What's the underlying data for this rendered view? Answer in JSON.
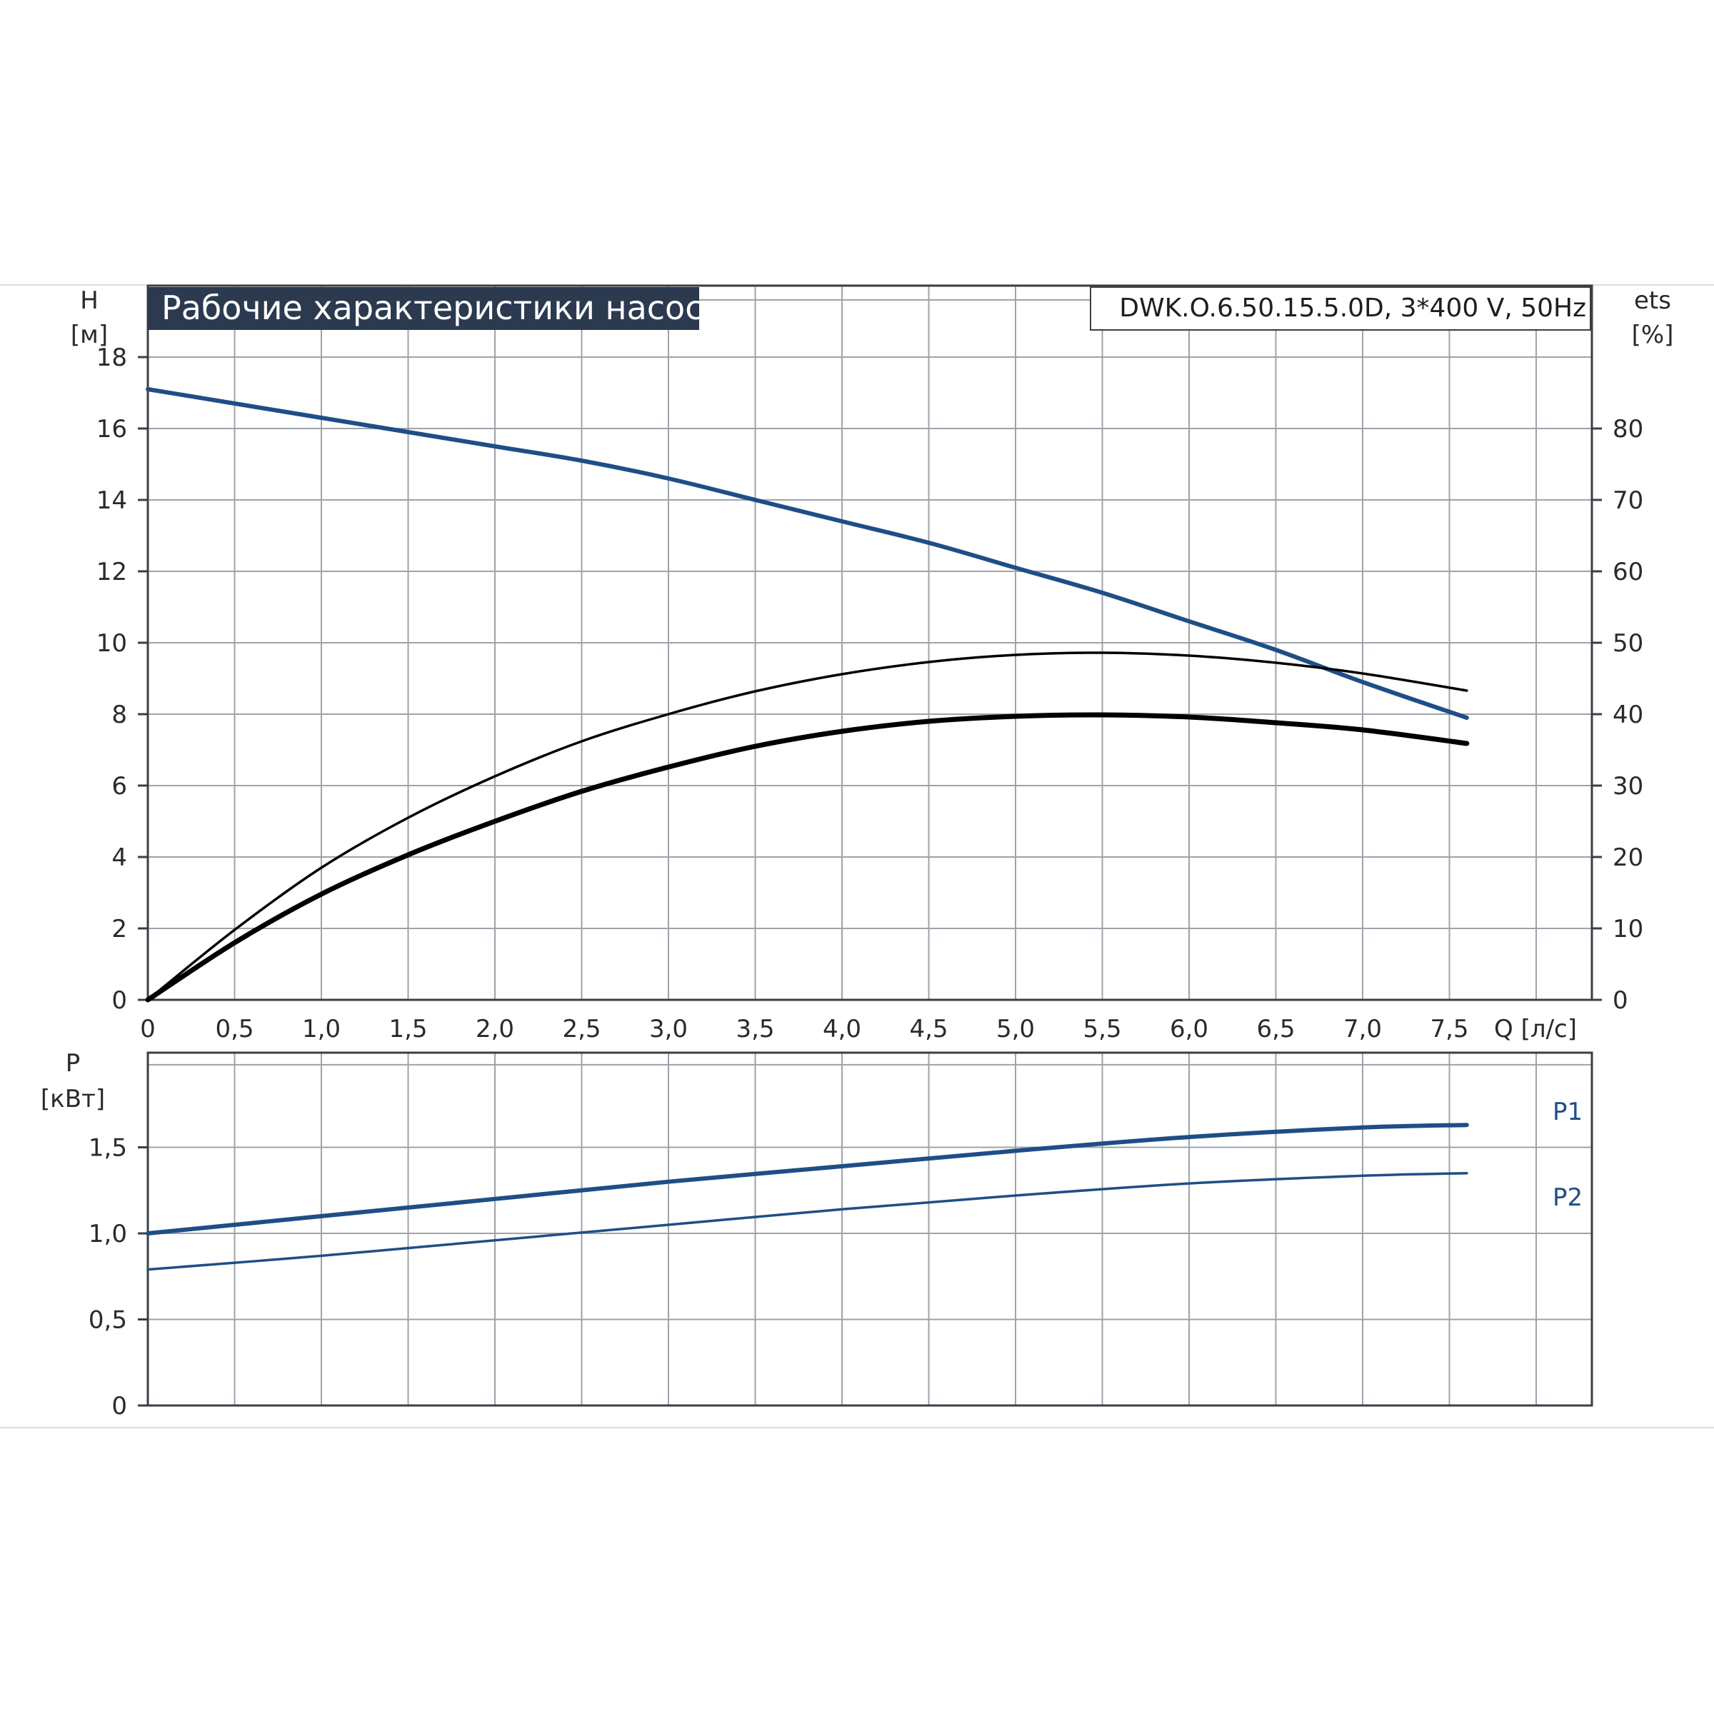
{
  "chart_data": [
    {
      "type": "line",
      "title": "Рабочие характеристики насоса",
      "subtitle": "DWK.O.6.50.15.5.0D, 3*400 V, 50Hz",
      "xlabel": "Q [л/с]",
      "xlim": [
        0,
        8.25
      ],
      "xticks": [
        "0",
        "0,5",
        "1,0",
        "1,5",
        "2,0",
        "2,5",
        "3,0",
        "3,5",
        "4,0",
        "4,5",
        "5,0",
        "5,5",
        "6,0",
        "6,5",
        "7,0",
        "7,5"
      ],
      "ylabel_left": "H",
      "ylabel_left_unit": "[м]",
      "ylim_left": [
        0,
        20
      ],
      "yticks_left": [
        "0",
        "2",
        "4",
        "6",
        "8",
        "10",
        "12",
        "14",
        "16",
        "18"
      ],
      "ylabel_right": "ets",
      "ylabel_right_unit": "[%]",
      "ylim_right": [
        0,
        100
      ],
      "yticks_right": [
        "0",
        "10",
        "20",
        "30",
        "40",
        "50",
        "60",
        "70",
        "80"
      ],
      "grid": true,
      "series": [
        {
          "axis": "left",
          "color": "#1f4e86",
          "points": [
            [
              0,
              17.1
            ],
            [
              0.5,
              16.7
            ],
            [
              1.0,
              16.3
            ],
            [
              1.5,
              15.9
            ],
            [
              2.0,
              15.5
            ],
            [
              2.5,
              15.1
            ],
            [
              3.0,
              14.6
            ],
            [
              3.5,
              14.0
            ],
            [
              4.0,
              13.4
            ],
            [
              4.5,
              12.8
            ],
            [
              5.0,
              12.1
            ],
            [
              5.5,
              11.4
            ],
            [
              6.0,
              10.6
            ],
            [
              6.5,
              9.8
            ],
            [
              7.0,
              8.9
            ],
            [
              7.6,
              7.9
            ]
          ]
        },
        {
          "axis": "right",
          "color": "#000000",
          "points": [
            [
              0,
              0
            ],
            [
              0.5,
              9.8
            ],
            [
              1.0,
              18.5
            ],
            [
              1.5,
              25.5
            ],
            [
              2.0,
              31.3
            ],
            [
              2.5,
              36.2
            ],
            [
              3.0,
              40.0
            ],
            [
              3.5,
              43.2
            ],
            [
              4.0,
              45.6
            ],
            [
              4.5,
              47.3
            ],
            [
              5.0,
              48.3
            ],
            [
              5.5,
              48.6
            ],
            [
              6.0,
              48.2
            ],
            [
              6.5,
              47.2
            ],
            [
              7.0,
              45.7
            ],
            [
              7.6,
              43.3
            ]
          ]
        },
        {
          "axis": "right",
          "color": "#000000",
          "points": [
            [
              0,
              0
            ],
            [
              0.5,
              8.0
            ],
            [
              1.0,
              14.8
            ],
            [
              1.5,
              20.3
            ],
            [
              2.0,
              25.0
            ],
            [
              2.5,
              29.2
            ],
            [
              3.0,
              32.6
            ],
            [
              3.5,
              35.5
            ],
            [
              4.0,
              37.6
            ],
            [
              4.5,
              39.0
            ],
            [
              5.0,
              39.7
            ],
            [
              5.5,
              39.9
            ],
            [
              6.0,
              39.6
            ],
            [
              6.5,
              38.8
            ],
            [
              7.0,
              37.8
            ],
            [
              7.6,
              35.9
            ]
          ]
        }
      ]
    },
    {
      "type": "line",
      "ylabel": "P",
      "ylabel_unit": "[кВт]",
      "ylim": [
        0,
        2.05
      ],
      "yticks": [
        "0",
        "0,5",
        "1,0",
        "1,5"
      ],
      "xlim": [
        0,
        8.25
      ],
      "grid": true,
      "series": [
        {
          "name": "P1",
          "color": "#1f4e86",
          "points": [
            [
              0,
              1.0
            ],
            [
              1.0,
              1.1
            ],
            [
              2.0,
              1.2
            ],
            [
              3.0,
              1.3
            ],
            [
              4.0,
              1.39
            ],
            [
              5.0,
              1.48
            ],
            [
              6.0,
              1.56
            ],
            [
              7.0,
              1.615
            ],
            [
              7.6,
              1.63
            ]
          ]
        },
        {
          "name": "P2",
          "color": "#1f4e86",
          "points": [
            [
              0,
              0.79
            ],
            [
              1.0,
              0.87
            ],
            [
              2.0,
              0.96
            ],
            [
              3.0,
              1.05
            ],
            [
              4.0,
              1.14
            ],
            [
              5.0,
              1.22
            ],
            [
              6.0,
              1.29
            ],
            [
              7.0,
              1.335
            ],
            [
              7.6,
              1.35
            ]
          ]
        }
      ]
    }
  ]
}
